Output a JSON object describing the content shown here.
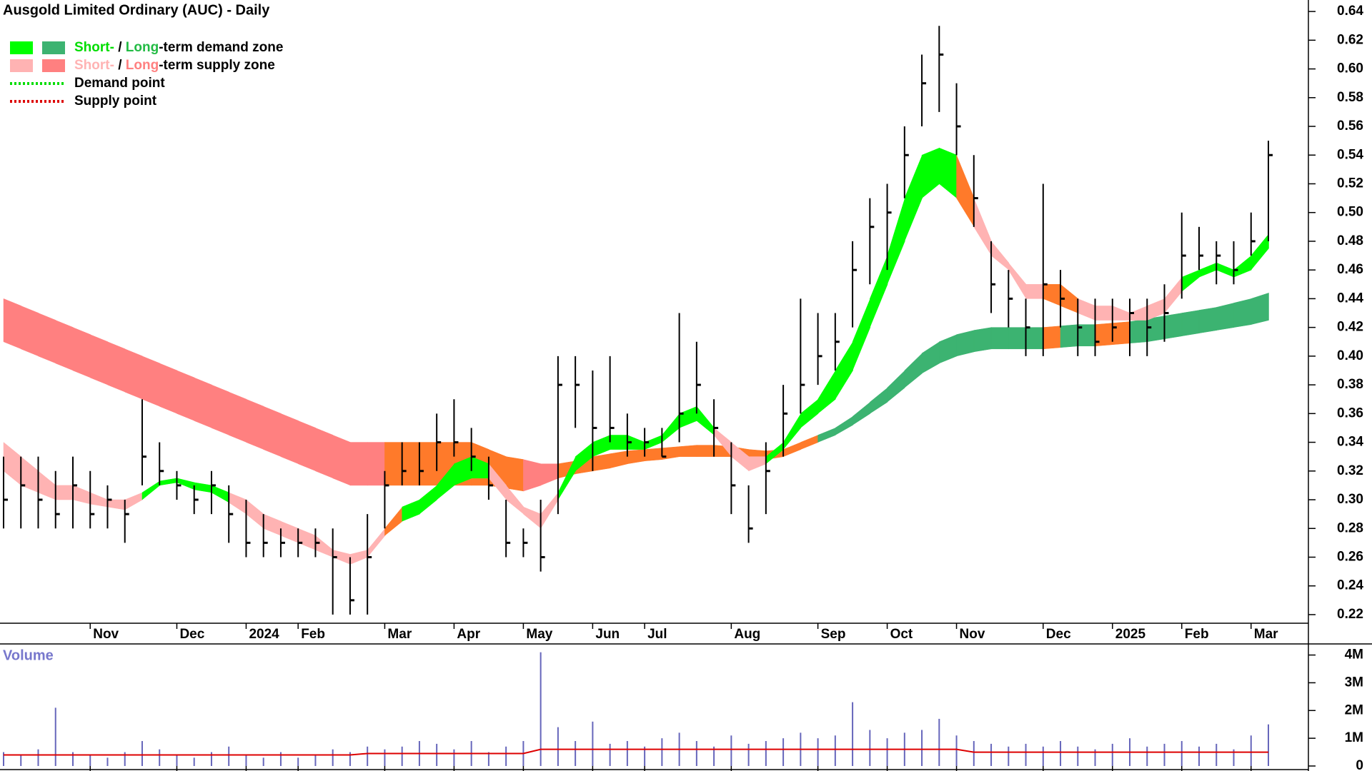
{
  "chart_data": [
    {
      "type": "ohlc",
      "title": "Ausgold Limited Ordinary (AUC) - Daily",
      "color": "#000000",
      "categories": [
        null,
        null,
        null,
        null,
        null,
        "Nov",
        null,
        null,
        null,
        null,
        "Dec",
        null,
        null,
        null,
        "2024",
        null,
        null,
        "Feb",
        null,
        null,
        null,
        null,
        "Mar",
        null,
        null,
        null,
        "Apr",
        null,
        null,
        null,
        "May",
        null,
        null,
        null,
        "Jun",
        null,
        null,
        "Jul",
        null,
        null,
        null,
        null,
        "Aug",
        null,
        null,
        null,
        null,
        "Sep",
        null,
        null,
        null,
        "Oct",
        null,
        null,
        null,
        "Nov",
        null,
        null,
        null,
        null,
        "Dec",
        null,
        null,
        null,
        "2025",
        null,
        null,
        null,
        "Feb",
        null,
        null,
        null,
        "Mar",
        null
      ],
      "high": [
        0.33,
        0.33,
        0.33,
        0.32,
        0.33,
        0.32,
        0.31,
        0.3,
        0.37,
        0.34,
        0.32,
        0.31,
        0.32,
        0.31,
        0.3,
        0.29,
        0.28,
        0.28,
        0.28,
        0.28,
        0.26,
        0.29,
        0.32,
        0.34,
        0.34,
        0.36,
        0.37,
        0.35,
        0.33,
        0.3,
        0.28,
        0.3,
        0.4,
        0.4,
        0.39,
        0.4,
        0.36,
        0.35,
        0.35,
        0.43,
        0.41,
        0.37,
        0.34,
        0.31,
        0.34,
        0.38,
        0.44,
        0.43,
        0.43,
        0.48,
        0.51,
        0.52,
        0.56,
        0.61,
        0.63,
        0.59,
        0.54,
        0.48,
        0.46,
        0.44,
        0.52,
        0.46,
        0.44,
        0.44,
        0.44,
        0.44,
        0.44,
        0.45,
        0.5,
        0.49,
        0.48,
        0.48,
        0.5,
        0.55
      ],
      "low": [
        0.28,
        0.28,
        0.28,
        0.28,
        0.28,
        0.28,
        0.28,
        0.27,
        0.31,
        0.31,
        0.3,
        0.29,
        0.29,
        0.27,
        0.26,
        0.26,
        0.26,
        0.26,
        0.26,
        0.22,
        0.22,
        0.22,
        0.28,
        0.31,
        0.31,
        0.32,
        0.33,
        0.32,
        0.3,
        0.26,
        0.26,
        0.25,
        0.29,
        0.35,
        0.32,
        0.34,
        0.33,
        0.33,
        0.33,
        0.34,
        0.36,
        0.33,
        0.29,
        0.27,
        0.29,
        0.33,
        0.36,
        0.38,
        0.39,
        0.42,
        0.45,
        0.46,
        0.51,
        0.56,
        0.57,
        0.54,
        0.49,
        0.43,
        0.42,
        0.4,
        0.4,
        0.42,
        0.4,
        0.4,
        0.41,
        0.4,
        0.4,
        0.41,
        0.44,
        0.46,
        0.45,
        0.45,
        0.47,
        0.48
      ],
      "close": [
        0.3,
        0.31,
        0.3,
        0.29,
        0.31,
        0.29,
        0.3,
        0.29,
        0.33,
        0.32,
        0.31,
        0.3,
        0.31,
        0.29,
        0.27,
        0.27,
        0.27,
        0.27,
        0.27,
        0.26,
        0.23,
        0.26,
        0.31,
        0.32,
        0.32,
        0.34,
        0.34,
        0.33,
        0.31,
        0.27,
        0.27,
        0.26,
        0.38,
        0.38,
        0.35,
        0.35,
        0.34,
        0.34,
        0.33,
        0.36,
        0.38,
        0.35,
        0.31,
        0.28,
        0.32,
        0.36,
        0.38,
        0.4,
        0.41,
        0.46,
        0.49,
        0.5,
        0.54,
        0.59,
        0.61,
        0.56,
        0.51,
        0.45,
        0.44,
        0.42,
        0.45,
        0.44,
        0.42,
        0.41,
        0.42,
        0.43,
        0.42,
        0.43,
        0.47,
        0.47,
        0.47,
        0.46,
        0.48,
        0.54
      ],
      "zones": [
        {
          "lower": [
            0.41,
            0.405,
            0.4,
            0.395,
            0.39,
            0.385,
            0.38,
            0.375,
            0.37,
            0.365,
            0.36,
            0.355,
            0.35,
            0.345,
            0.34,
            0.335,
            0.33,
            0.325,
            0.32,
            0.315,
            0.31,
            0.31,
            0.31,
            0.31,
            0.31,
            0.31,
            0.31,
            0.31,
            0.31,
            0.308,
            0.306,
            0.31,
            0.315,
            0.318,
            0.32,
            0.322,
            0.325,
            0.327,
            0.328,
            0.33,
            0.33,
            0.33,
            0.33,
            0.328,
            0.328,
            0.33,
            0.335,
            0.34,
            0.345,
            0.352,
            0.36,
            0.368,
            0.378,
            0.388,
            0.395,
            0.4,
            0.403,
            0.405,
            0.405,
            0.405,
            0.405,
            0.406,
            0.407,
            0.407,
            0.408,
            0.409,
            0.41,
            0.412,
            0.414,
            0.416,
            0.418,
            0.42,
            0.422,
            0.425
          ],
          "upper": [
            0.44,
            0.435,
            0.43,
            0.425,
            0.42,
            0.415,
            0.41,
            0.405,
            0.4,
            0.395,
            0.39,
            0.385,
            0.38,
            0.375,
            0.37,
            0.365,
            0.36,
            0.355,
            0.35,
            0.345,
            0.34,
            0.34,
            0.34,
            0.34,
            0.34,
            0.34,
            0.34,
            0.34,
            0.335,
            0.33,
            0.328,
            0.325,
            0.325,
            0.327,
            0.33,
            0.332,
            0.334,
            0.335,
            0.336,
            0.337,
            0.338,
            0.338,
            0.337,
            0.335,
            0.334,
            0.335,
            0.34,
            0.345,
            0.35,
            0.358,
            0.368,
            0.378,
            0.39,
            0.402,
            0.41,
            0.415,
            0.418,
            0.42,
            0.42,
            0.42,
            0.42,
            0.421,
            0.422,
            0.422,
            0.423,
            0.424,
            0.426,
            0.428,
            0.43,
            0.432,
            0.434,
            0.437,
            0.44,
            0.444
          ],
          "segments": [
            {
              "until": 21,
              "color": "#ff8080"
            },
            {
              "until": 29,
              "color": "#ff7a2a"
            },
            {
              "until": 31,
              "color": "#ff8080"
            },
            {
              "until": 46,
              "color": "#ff7a2a"
            },
            {
              "until": 59,
              "color": "#3cb371"
            },
            {
              "until": 60,
              "color": "#ff7a2a"
            },
            {
              "until": 62,
              "color": "#3cb371"
            },
            {
              "until": 64,
              "color": "#ff7a2a"
            },
            {
              "until": 73,
              "color": "#3cb371"
            }
          ]
        },
        {
          "lower": [
            0.32,
            0.31,
            0.305,
            0.3,
            0.3,
            0.297,
            0.295,
            0.293,
            0.3,
            0.31,
            0.312,
            0.307,
            0.305,
            0.298,
            0.29,
            0.28,
            0.275,
            0.27,
            0.265,
            0.26,
            0.255,
            0.26,
            0.275,
            0.285,
            0.29,
            0.3,
            0.31,
            0.315,
            0.315,
            0.3,
            0.29,
            0.28,
            0.3,
            0.32,
            0.33,
            0.335,
            0.335,
            0.335,
            0.34,
            0.35,
            0.355,
            0.345,
            0.33,
            0.32,
            0.325,
            0.335,
            0.35,
            0.36,
            0.37,
            0.39,
            0.42,
            0.45,
            0.48,
            0.51,
            0.52,
            0.51,
            0.49,
            0.47,
            0.46,
            0.44,
            0.44,
            0.435,
            0.43,
            0.425,
            0.425,
            0.425,
            0.425,
            0.43,
            0.445,
            0.455,
            0.46,
            0.455,
            0.46,
            0.475
          ],
          "upper": [
            0.34,
            0.33,
            0.32,
            0.31,
            0.31,
            0.305,
            0.3,
            0.3,
            0.305,
            0.313,
            0.315,
            0.312,
            0.31,
            0.305,
            0.3,
            0.29,
            0.285,
            0.28,
            0.275,
            0.265,
            0.262,
            0.265,
            0.28,
            0.295,
            0.3,
            0.31,
            0.325,
            0.33,
            0.325,
            0.31,
            0.295,
            0.29,
            0.305,
            0.33,
            0.34,
            0.345,
            0.345,
            0.34,
            0.345,
            0.36,
            0.365,
            0.35,
            0.34,
            0.33,
            0.33,
            0.34,
            0.36,
            0.37,
            0.39,
            0.41,
            0.44,
            0.47,
            0.51,
            0.54,
            0.545,
            0.54,
            0.51,
            0.48,
            0.465,
            0.45,
            0.45,
            0.45,
            0.44,
            0.435,
            0.435,
            0.43,
            0.435,
            0.44,
            0.455,
            0.46,
            0.465,
            0.46,
            0.47,
            0.485
          ],
          "segments": [
            {
              "until": 7,
              "color": "#ffb3b3"
            },
            {
              "until": 12,
              "color": "#00ff00"
            },
            {
              "until": 21,
              "color": "#ffb3b3"
            },
            {
              "until": 22,
              "color": "#ff7a2a"
            },
            {
              "until": 27,
              "color": "#00ff00"
            },
            {
              "until": 31,
              "color": "#ffb3b3"
            },
            {
              "until": 40,
              "color": "#00ff00"
            },
            {
              "until": 43,
              "color": "#ffb3b3"
            },
            {
              "until": 54,
              "color": "#00ff00"
            },
            {
              "until": 55,
              "color": "#ff7a2a"
            },
            {
              "until": 59,
              "color": "#ffb3b3"
            },
            {
              "until": 61,
              "color": "#ff7a2a"
            },
            {
              "until": 67,
              "color": "#ffb3b3"
            },
            {
              "until": 73,
              "color": "#00ff00"
            }
          ]
        }
      ],
      "legend": [
        {
          "swatches": [
            "#00ff00",
            "#3cb371"
          ],
          "parts": [
            {
              "text": "Short-",
              "color": "#00dd00"
            },
            {
              "text": " / ",
              "color": "#000000"
            },
            {
              "text": "Long",
              "color": "#22bb44"
            },
            {
              "text": "-term demand zone",
              "color": "#000000"
            }
          ]
        },
        {
          "swatches": [
            "#ffb3b3",
            "#ff8080"
          ],
          "parts": [
            {
              "text": "Short-",
              "color": "#ffb3b3"
            },
            {
              "text": " / ",
              "color": "#000000"
            },
            {
              "text": "Long",
              "color": "#ff8080"
            },
            {
              "text": "-term supply zone",
              "color": "#000000"
            }
          ]
        },
        {
          "line": "#00dd00",
          "parts": [
            {
              "text": "Demand point",
              "color": "#000000"
            }
          ]
        },
        {
          "line": "#dd0000",
          "parts": [
            {
              "text": "Supply point",
              "color": "#000000"
            }
          ]
        }
      ],
      "ylim": [
        0.214,
        0.648
      ],
      "yticks": [
        0.22,
        0.24,
        0.26,
        0.28,
        {
          "value": 0.3,
          "label": "0.30"
        },
        0.32,
        0.34,
        0.36,
        0.38,
        {
          "value": 0.4,
          "label": "0.40"
        },
        0.42,
        0.44,
        0.46,
        0.48,
        {
          "value": 0.5,
          "label": "0.50"
        },
        0.52,
        0.54,
        0.56,
        0.58,
        {
          "value": 0.6,
          "label": "0.60"
        },
        0.62,
        0.64
      ]
    },
    {
      "type": "bar",
      "title": "Volume",
      "color": "#6666bb",
      "values": [
        500000,
        400000,
        600000,
        2100000,
        500000,
        400000,
        300000,
        500000,
        900000,
        600000,
        400000,
        300000,
        500000,
        700000,
        400000,
        300000,
        500000,
        300000,
        400000,
        600000,
        500000,
        700000,
        600000,
        700000,
        900000,
        800000,
        600000,
        900000,
        500000,
        700000,
        900000,
        4100000,
        1400000,
        900000,
        1600000,
        800000,
        900000,
        700000,
        1000000,
        1200000,
        900000,
        700000,
        1100000,
        800000,
        900000,
        1000000,
        1200000,
        1000000,
        1100000,
        2300000,
        1300000,
        1000000,
        1200000,
        1300000,
        1700000,
        1100000,
        900000,
        800000,
        700000,
        800000,
        700000,
        900000,
        700000,
        600000,
        800000,
        1000000,
        700000,
        800000,
        900000,
        700000,
        800000,
        600000,
        1100000,
        1500000
      ],
      "average": {
        "color": "#dd0000",
        "values": [
          400000,
          400000,
          400000,
          400000,
          400000,
          400000,
          400000,
          400000,
          400000,
          400000,
          400000,
          400000,
          400000,
          400000,
          400000,
          400000,
          400000,
          400000,
          400000,
          400000,
          400000,
          450000,
          450000,
          450000,
          450000,
          450000,
          450000,
          450000,
          450000,
          450000,
          450000,
          600000,
          600000,
          600000,
          600000,
          600000,
          600000,
          600000,
          600000,
          600000,
          600000,
          600000,
          600000,
          600000,
          600000,
          600000,
          600000,
          600000,
          600000,
          600000,
          600000,
          600000,
          600000,
          600000,
          600000,
          600000,
          500000,
          500000,
          500000,
          500000,
          500000,
          500000,
          500000,
          500000,
          500000,
          500000,
          500000,
          500000,
          500000,
          500000,
          500000,
          500000,
          500000,
          500000
        ]
      },
      "ylim": [
        0,
        4400000
      ],
      "yticks": [
        0,
        {
          "value": 1000000,
          "label": "1M"
        },
        {
          "value": 2000000,
          "label": "2M"
        },
        {
          "value": 3000000,
          "label": "3M"
        },
        {
          "value": 4000000,
          "label": "4M"
        }
      ]
    }
  ]
}
